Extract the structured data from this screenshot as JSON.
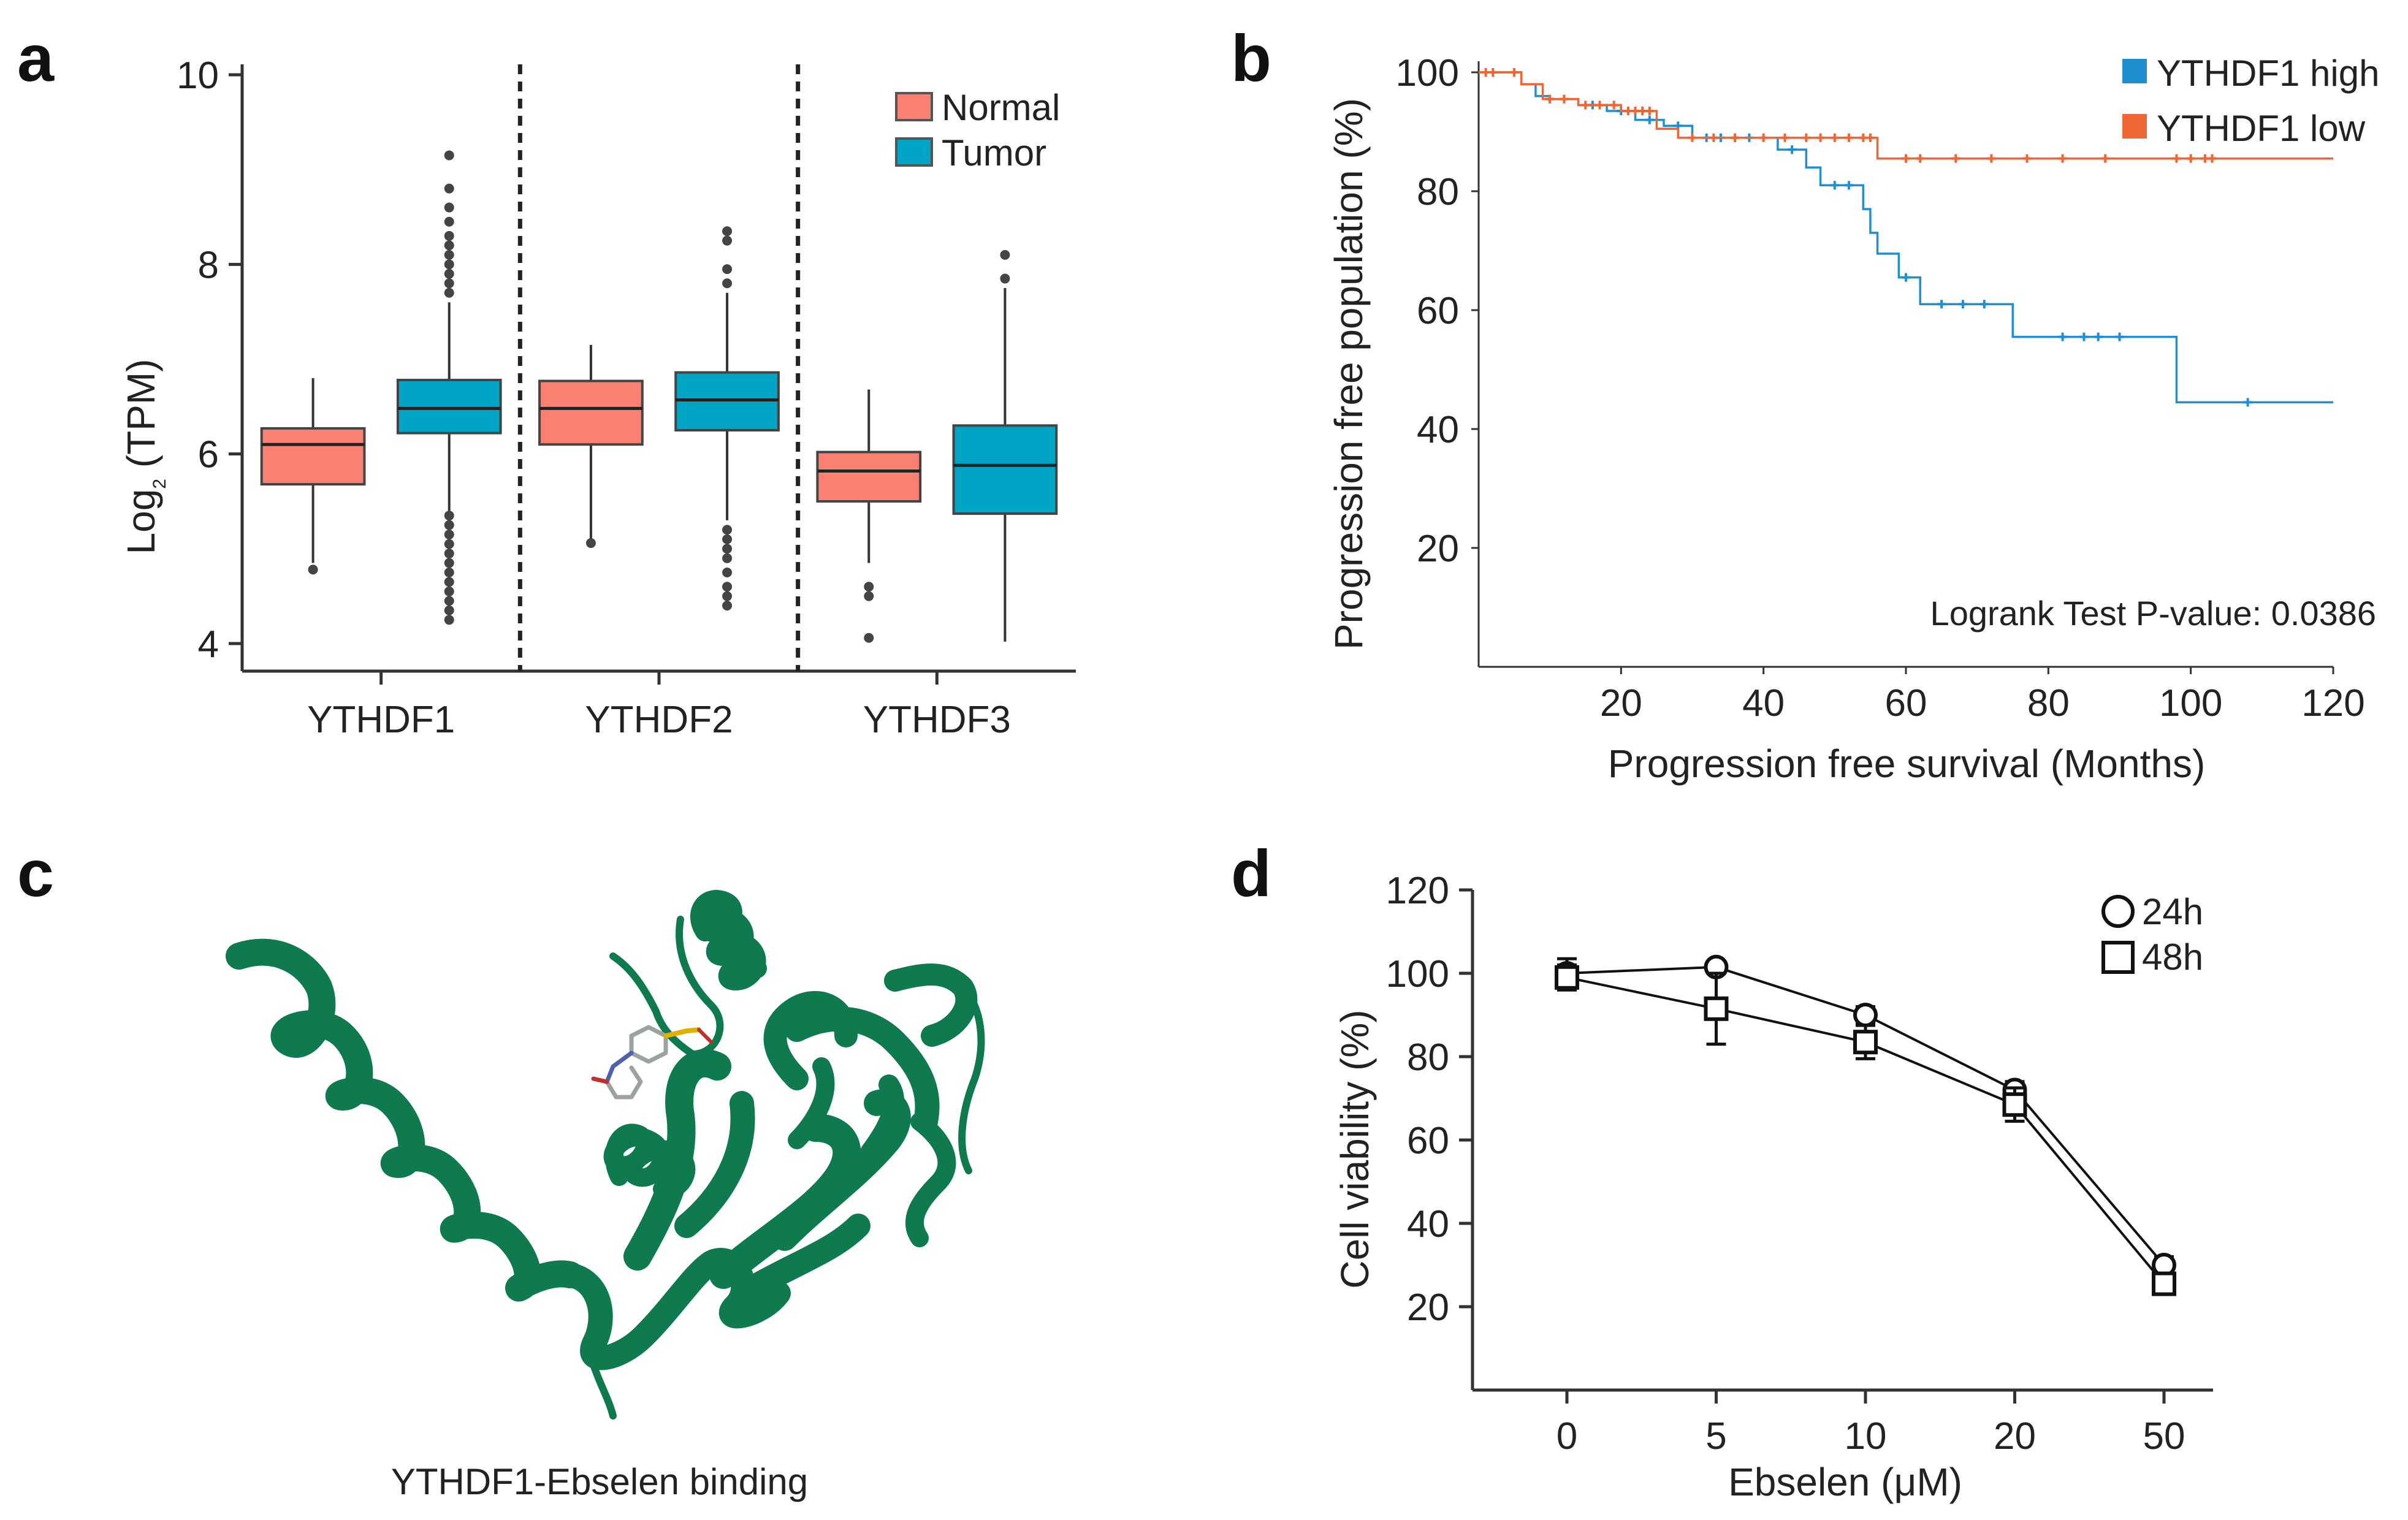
{
  "panel_labels": {
    "a": "a",
    "b": "b",
    "c": "c",
    "d": "d"
  },
  "panel_a": {
    "ylabel_main": "Log",
    "ylabel_sub": "2",
    "ylabel_rest": " (TPM)",
    "legend": [
      {
        "label": "Normal",
        "color": "#FA8072"
      },
      {
        "label": "Tumor",
        "color": "#00A5C6"
      }
    ]
  },
  "panel_b": {
    "ylabel": "Progression free population (%)",
    "xlabel": "Progression free survival (Months)",
    "legend": [
      {
        "label": "YTHDF1 high",
        "color": "#1F8FD0"
      },
      {
        "label": "YTHDF1 low",
        "color": "#EE6633"
      }
    ],
    "annotation": "Logrank Test P-value: 0.0386"
  },
  "panel_c": {
    "caption": "YTHDF1-Ebselen binding",
    "protein_color": "#0E7A4E"
  },
  "panel_d": {
    "ylabel": "Cell viability (%)",
    "xlabel": "Ebselen (μM)",
    "legend": [
      {
        "label": "24h",
        "marker": "circle"
      },
      {
        "label": "48h",
        "marker": "square"
      }
    ]
  },
  "chart_data": [
    {
      "type": "box",
      "panel": "a",
      "ylim": [
        3.8,
        10
      ],
      "yticks": [
        4,
        6,
        8,
        10
      ],
      "categories": [
        "YTHDF1",
        "YTHDF2",
        "YTHDF3"
      ],
      "series": [
        {
          "name": "Normal",
          "boxes": [
            {
              "category": "YTHDF1",
              "min": 4.85,
              "q1": 5.68,
              "median": 6.1,
              "q3": 6.27,
              "max": 6.8,
              "outliers": [
                4.78
              ]
            },
            {
              "category": "YTHDF2",
              "min": 5.1,
              "q1": 6.1,
              "median": 6.48,
              "q3": 6.77,
              "max": 7.15,
              "outliers": [
                5.06
              ]
            },
            {
              "category": "YTHDF3",
              "min": 4.85,
              "q1": 5.5,
              "median": 5.82,
              "q3": 6.02,
              "max": 6.68,
              "outliers": [
                4.06,
                4.5,
                4.6
              ]
            }
          ]
        },
        {
          "name": "Tumor",
          "boxes": [
            {
              "category": "YTHDF1",
              "min": 5.4,
              "q1": 6.22,
              "median": 6.48,
              "q3": 6.78,
              "max": 7.6,
              "outliers": [
                4.25,
                4.35,
                4.45,
                4.55,
                4.65,
                4.75,
                4.85,
                4.95,
                5.05,
                5.15,
                5.25,
                5.35,
                7.7,
                7.8,
                7.9,
                8.0,
                8.1,
                8.2,
                8.3,
                8.45,
                8.6,
                8.8,
                9.15
              ]
            },
            {
              "category": "YTHDF2",
              "min": 5.3,
              "q1": 6.25,
              "median": 6.57,
              "q3": 6.86,
              "max": 7.7,
              "outliers": [
                4.4,
                4.5,
                4.6,
                4.75,
                4.9,
                5.0,
                5.1,
                5.2,
                7.8,
                7.95,
                8.25,
                8.35
              ]
            },
            {
              "category": "YTHDF3",
              "min": 4.02,
              "q1": 5.37,
              "median": 5.88,
              "q3": 6.3,
              "max": 7.75,
              "outliers": [
                7.85,
                8.1
              ]
            }
          ]
        }
      ]
    },
    {
      "type": "line",
      "subtype": "kaplan-meier",
      "panel": "b",
      "xlim": [
        0,
        120
      ],
      "ylim": [
        0,
        100
      ],
      "xticks": [
        20,
        40,
        60,
        80,
        100,
        120
      ],
      "yticks": [
        20,
        40,
        60,
        80,
        100
      ],
      "series": [
        {
          "name": "YTHDF1 high",
          "steps": [
            [
              0,
              100
            ],
            [
              6,
              98
            ],
            [
              8,
              96
            ],
            [
              10,
              95.5
            ],
            [
              14,
              94.5
            ],
            [
              18,
              93.5
            ],
            [
              22,
              92
            ],
            [
              26,
              91
            ],
            [
              30,
              89
            ],
            [
              42,
              87
            ],
            [
              46,
              84
            ],
            [
              48,
              81
            ],
            [
              54,
              77
            ],
            [
              55,
              73
            ],
            [
              56,
              69.5
            ],
            [
              59,
              65.5
            ],
            [
              62,
              61
            ],
            [
              75,
              55.5
            ],
            [
              98,
              44.5
            ],
            [
              120,
              44.5
            ]
          ],
          "censored": [
            [
              10,
              95.5
            ],
            [
              12,
              95.5
            ],
            [
              16,
              94.5
            ],
            [
              20,
              93.5
            ],
            [
              24,
              92
            ],
            [
              28,
              91
            ],
            [
              32,
              89
            ],
            [
              34,
              89
            ],
            [
              36,
              89
            ],
            [
              38,
              89
            ],
            [
              44,
              87
            ],
            [
              50,
              81
            ],
            [
              52,
              81
            ],
            [
              60,
              65.5
            ],
            [
              65,
              61
            ],
            [
              68,
              61
            ],
            [
              71,
              61
            ],
            [
              82,
              55.5
            ],
            [
              85,
              55.5
            ],
            [
              87,
              55.5
            ],
            [
              90,
              55.5
            ],
            [
              108,
              44.5
            ]
          ]
        },
        {
          "name": "YTHDF1 low",
          "steps": [
            [
              0,
              100
            ],
            [
              6,
              98
            ],
            [
              9,
              95.5
            ],
            [
              14,
              94.5
            ],
            [
              20,
              93.5
            ],
            [
              25,
              90.5
            ],
            [
              28,
              89
            ],
            [
              56,
              85.5
            ],
            [
              120,
              85.5
            ]
          ],
          "censored": [
            [
              1,
              100
            ],
            [
              2,
              100
            ],
            [
              5,
              100
            ],
            [
              10,
              95.5
            ],
            [
              12,
              95.5
            ],
            [
              15,
              94.5
            ],
            [
              17,
              94.5
            ],
            [
              19,
              94.5
            ],
            [
              21,
              93.5
            ],
            [
              22,
              93.5
            ],
            [
              23,
              93.5
            ],
            [
              24,
              93.5
            ],
            [
              30,
              89
            ],
            [
              33,
              89
            ],
            [
              36,
              89
            ],
            [
              40,
              89
            ],
            [
              43,
              89
            ],
            [
              46,
              89
            ],
            [
              48,
              89
            ],
            [
              50,
              89
            ],
            [
              52,
              89
            ],
            [
              54,
              89
            ],
            [
              55,
              89
            ],
            [
              60,
              85.5
            ],
            [
              62,
              85.5
            ],
            [
              67,
              85.5
            ],
            [
              72,
              85.5
            ],
            [
              77,
              85.5
            ],
            [
              82,
              85.5
            ],
            [
              88,
              85.5
            ],
            [
              98,
              85.5
            ],
            [
              100,
              85.5
            ],
            [
              102,
              85.5
            ],
            [
              103,
              85.5
            ]
          ]
        }
      ]
    },
    {
      "type": "line",
      "panel": "d",
      "categories": [
        "0",
        "5",
        "10",
        "20",
        "50"
      ],
      "ylim": [
        0,
        120
      ],
      "yticks": [
        20,
        40,
        60,
        80,
        100,
        120
      ],
      "series": [
        {
          "name": "24h",
          "marker": "circle",
          "values": [
            100,
            101.5,
            90,
            72,
            30
          ],
          "errors": [
            3.5,
            1,
            2,
            2,
            2
          ]
        },
        {
          "name": "48h",
          "marker": "square",
          "values": [
            99,
            91.5,
            83.5,
            68.5,
            25.5
          ],
          "errors": [
            3,
            8.5,
            4,
            4,
            1
          ]
        }
      ]
    }
  ]
}
